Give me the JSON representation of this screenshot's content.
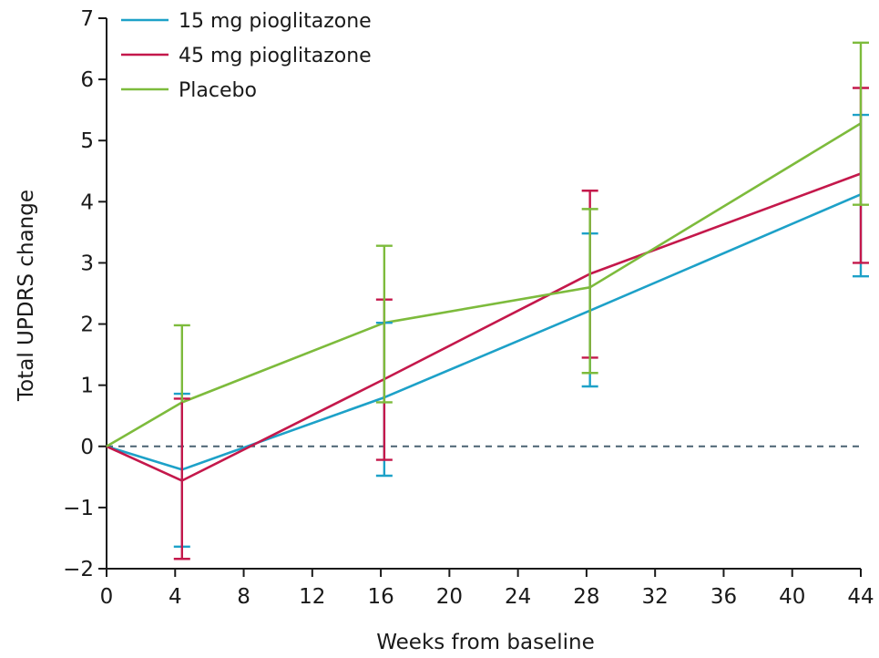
{
  "chart_data": {
    "type": "line",
    "title": "",
    "xlabel": "Weeks from baseline",
    "ylabel": "Total UPDRS change",
    "xlim": [
      0,
      44
    ],
    "ylim": [
      -2,
      7
    ],
    "x_ticks": [
      0,
      4,
      8,
      12,
      16,
      20,
      24,
      28,
      32,
      36,
      40,
      44
    ],
    "y_ticks": [
      -2,
      -1,
      0,
      1,
      2,
      3,
      4,
      5,
      6,
      7
    ],
    "y_tick_labels": [
      "−2",
      "−1",
      "0",
      "1",
      "2",
      "3",
      "4",
      "5",
      "6",
      "7"
    ],
    "grid": false,
    "reference_line": {
      "y": 0,
      "style": "dashed",
      "color": "#4a6272"
    },
    "legend": {
      "position": "top-left"
    },
    "series": [
      {
        "name": "15 mg pioglitazone",
        "color": "#1da1c8",
        "x": [
          0,
          4.4,
          16.2,
          28.2,
          44
        ],
        "y": [
          0,
          -0.38,
          0.8,
          2.22,
          4.12
        ],
        "err_low": [
          null,
          -1.64,
          -0.48,
          0.98,
          2.78
        ],
        "err_high": [
          null,
          0.86,
          2.02,
          3.48,
          5.42
        ]
      },
      {
        "name": "45 mg pioglitazone",
        "color": "#c4184b",
        "x": [
          0,
          4.4,
          16.2,
          28.2,
          44
        ],
        "y": [
          0,
          -0.56,
          1.1,
          2.82,
          4.46
        ],
        "err_low": [
          null,
          -1.84,
          -0.22,
          1.45,
          3.0
        ],
        "err_high": [
          null,
          0.78,
          2.4,
          4.18,
          5.86
        ]
      },
      {
        "name": "Placebo",
        "color": "#7dbb3c",
        "x": [
          0,
          4.4,
          16.2,
          28.2,
          44
        ],
        "y": [
          0,
          0.72,
          2.02,
          2.6,
          5.28
        ],
        "err_low": [
          null,
          null,
          0.72,
          1.2,
          3.95
        ],
        "err_high": [
          null,
          1.98,
          3.28,
          3.88,
          6.6
        ]
      }
    ]
  }
}
